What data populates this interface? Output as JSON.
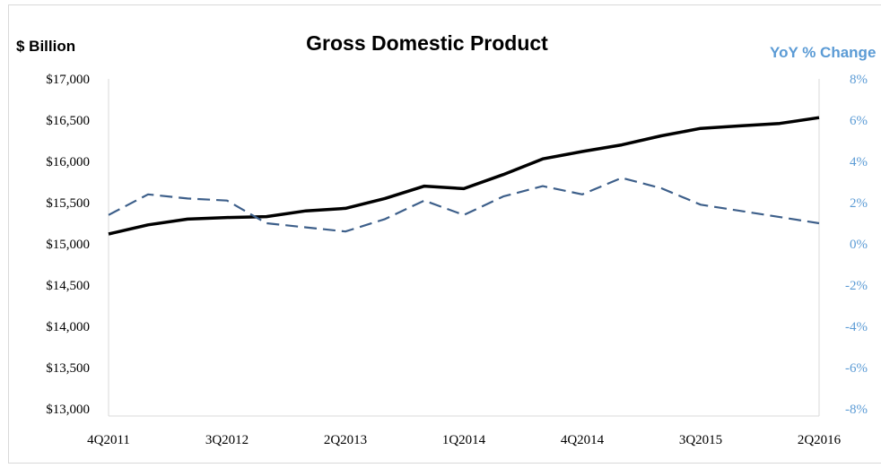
{
  "chart_data": {
    "type": "line",
    "title": "Gross Domestic Product",
    "ylabel_left": "$ Billion",
    "ylabel_right": "YoY % Change",
    "x": [
      "4Q2011",
      "1Q2012",
      "2Q2012",
      "3Q2012",
      "4Q2012",
      "1Q2013",
      "2Q2013",
      "3Q2013",
      "4Q2013",
      "1Q2014",
      "2Q2014",
      "3Q2014",
      "4Q2014",
      "1Q2015",
      "2Q2015",
      "3Q2015",
      "4Q2015",
      "1Q2016",
      "2Q2016"
    ],
    "x_tick_labels": [
      "4Q2011",
      "3Q2012",
      "2Q2013",
      "1Q2014",
      "4Q2014",
      "3Q2015",
      "2Q2016"
    ],
    "y_left_ticks": [
      "$17,000",
      "$16,500",
      "$16,000",
      "$15,500",
      "$15,000",
      "$14,500",
      "$14,000",
      "$13,500",
      "$13,000"
    ],
    "y_right_ticks": [
      "8%",
      "6%",
      "4%",
      "2%",
      "0%",
      "-2%",
      "-4%",
      "-6%",
      "-8%"
    ],
    "ylim_left": [
      13000,
      17000
    ],
    "ylim_right": [
      -8,
      8
    ],
    "grid": false,
    "series": [
      {
        "axis": "left",
        "style": "solid",
        "color": "#000000",
        "values": [
          15120,
          15230,
          15300,
          15320,
          15330,
          15400,
          15430,
          15550,
          15700,
          15670,
          15840,
          16030,
          16120,
          16200,
          16310,
          16400,
          16430,
          16460,
          16530
        ]
      },
      {
        "axis": "right",
        "style": "dashed",
        "color": "#3d5f8a",
        "values": [
          1.4,
          2.4,
          2.2,
          2.1,
          1.0,
          0.8,
          0.6,
          1.2,
          2.1,
          1.4,
          2.3,
          2.8,
          2.4,
          3.2,
          2.7,
          1.9,
          1.6,
          1.3,
          1.0
        ]
      }
    ],
    "colors": {
      "axis_line": "#d9d9d9",
      "right_axis_text": "#5b9bd5",
      "left_axis_text": "#000000"
    }
  }
}
